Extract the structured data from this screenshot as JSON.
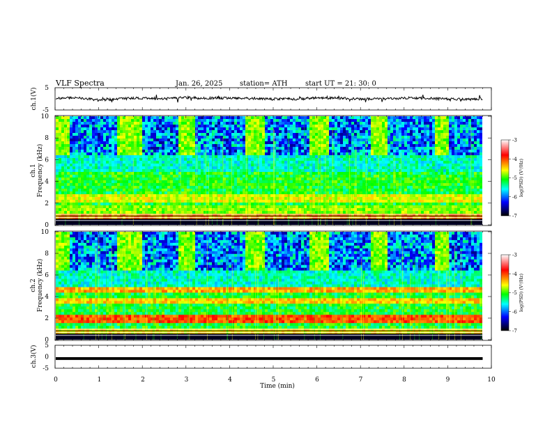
{
  "header": {
    "title": "VLF  Spectra",
    "date": "Jan. 26, 2025",
    "station": "station= ATH",
    "start": "start  UT  =   21: 30: 0"
  },
  "colorbar": {
    "label": "log(PSD) (V²/Hz)",
    "ticks": [
      "-3",
      "-4",
      "-5",
      "-6",
      "-7"
    ],
    "stops": [
      "#ffffff",
      "#ff0000",
      "#ffff00",
      "#00ff00",
      "#00ffff",
      "#0000ff",
      "#000000"
    ]
  },
  "chart_data": [
    {
      "type": "line",
      "name": "ch1-waveform",
      "ylabel": "ch.1(V)",
      "xlim": [
        0,
        10
      ],
      "ylim": [
        -5,
        5
      ],
      "yticks": [
        "5",
        "-5"
      ],
      "x": [
        0.0,
        0.5,
        1.0,
        1.5,
        2.0,
        2.5,
        3.0,
        3.5,
        4.0,
        4.5,
        5.0,
        5.5,
        6.0,
        6.5,
        7.0,
        7.5,
        8.0,
        8.5,
        9.0,
        9.5,
        9.8
      ],
      "values": [
        0.3,
        0.5,
        -0.6,
        0.1,
        0.4,
        0.0,
        0.6,
        0.3,
        0.4,
        0.2,
        0.0,
        -0.1,
        0.5,
        0.3,
        -0.1,
        0.0,
        0.4,
        0.3,
        -0.1,
        -0.2,
        0.1
      ]
    },
    {
      "type": "heatmap",
      "name": "ch1-spectrogram",
      "ylabel": "ch.1\nFrequency (kHz)",
      "xlim": [
        0,
        10
      ],
      "ylim": [
        0,
        10
      ],
      "yticks": [
        "0",
        "2",
        "4",
        "6",
        "8",
        "10"
      ],
      "z_label": "log(PSD) (V²/Hz)",
      "z_range": [
        -7,
        -3
      ],
      "on_intervals_min": [
        [
          0.0,
          0.35
        ],
        [
          1.38,
          2.0
        ],
        [
          2.8,
          3.2
        ],
        [
          4.35,
          4.8
        ],
        [
          5.8,
          6.25
        ],
        [
          7.25,
          7.65
        ],
        [
          8.7,
          9.05
        ]
      ],
      "bands": [
        {
          "f_khz": 4.0,
          "level": -5.2
        },
        {
          "f_khz": 2.5,
          "level": -4.6
        },
        {
          "f_khz": 1.5,
          "level": -4.8
        },
        {
          "f_khz": 0.8,
          "level": -4.2
        }
      ]
    },
    {
      "type": "heatmap",
      "name": "ch2-spectrogram",
      "ylabel": "ch.2\nFrequency (kHz)",
      "xlim": [
        0,
        10
      ],
      "ylim": [
        0,
        10
      ],
      "yticks": [
        "0",
        "2",
        "4",
        "6",
        "8",
        "10"
      ],
      "z_label": "log(PSD) (V²/Hz)",
      "z_range": [
        -7,
        -3
      ],
      "on_intervals_min": [
        [
          0.0,
          0.35
        ],
        [
          1.38,
          2.0
        ],
        [
          2.8,
          3.2
        ],
        [
          4.35,
          4.8
        ],
        [
          5.8,
          6.25
        ],
        [
          7.25,
          7.65
        ],
        [
          8.7,
          9.05
        ]
      ],
      "bands": [
        {
          "f_khz": 4.6,
          "level": -4.3
        },
        {
          "f_khz": 3.6,
          "level": -4.4
        },
        {
          "f_khz": 2.0,
          "level": -4.0
        },
        {
          "f_khz": 0.8,
          "level": -4.5
        }
      ]
    },
    {
      "type": "line",
      "name": "ch3-waveform",
      "ylabel": "ch.3(V)",
      "xlim": [
        0,
        10
      ],
      "ylim": [
        -5,
        5
      ],
      "yticks": [
        "5",
        "0",
        "-5"
      ],
      "x": [
        0.0,
        9.8
      ],
      "values": [
        -0.8,
        -0.8
      ]
    }
  ],
  "xaxis": {
    "label": "Time  (min)",
    "ticks": [
      "0",
      "1",
      "2",
      "3",
      "4",
      "5",
      "6",
      "7",
      "8",
      "9",
      "10"
    ]
  }
}
